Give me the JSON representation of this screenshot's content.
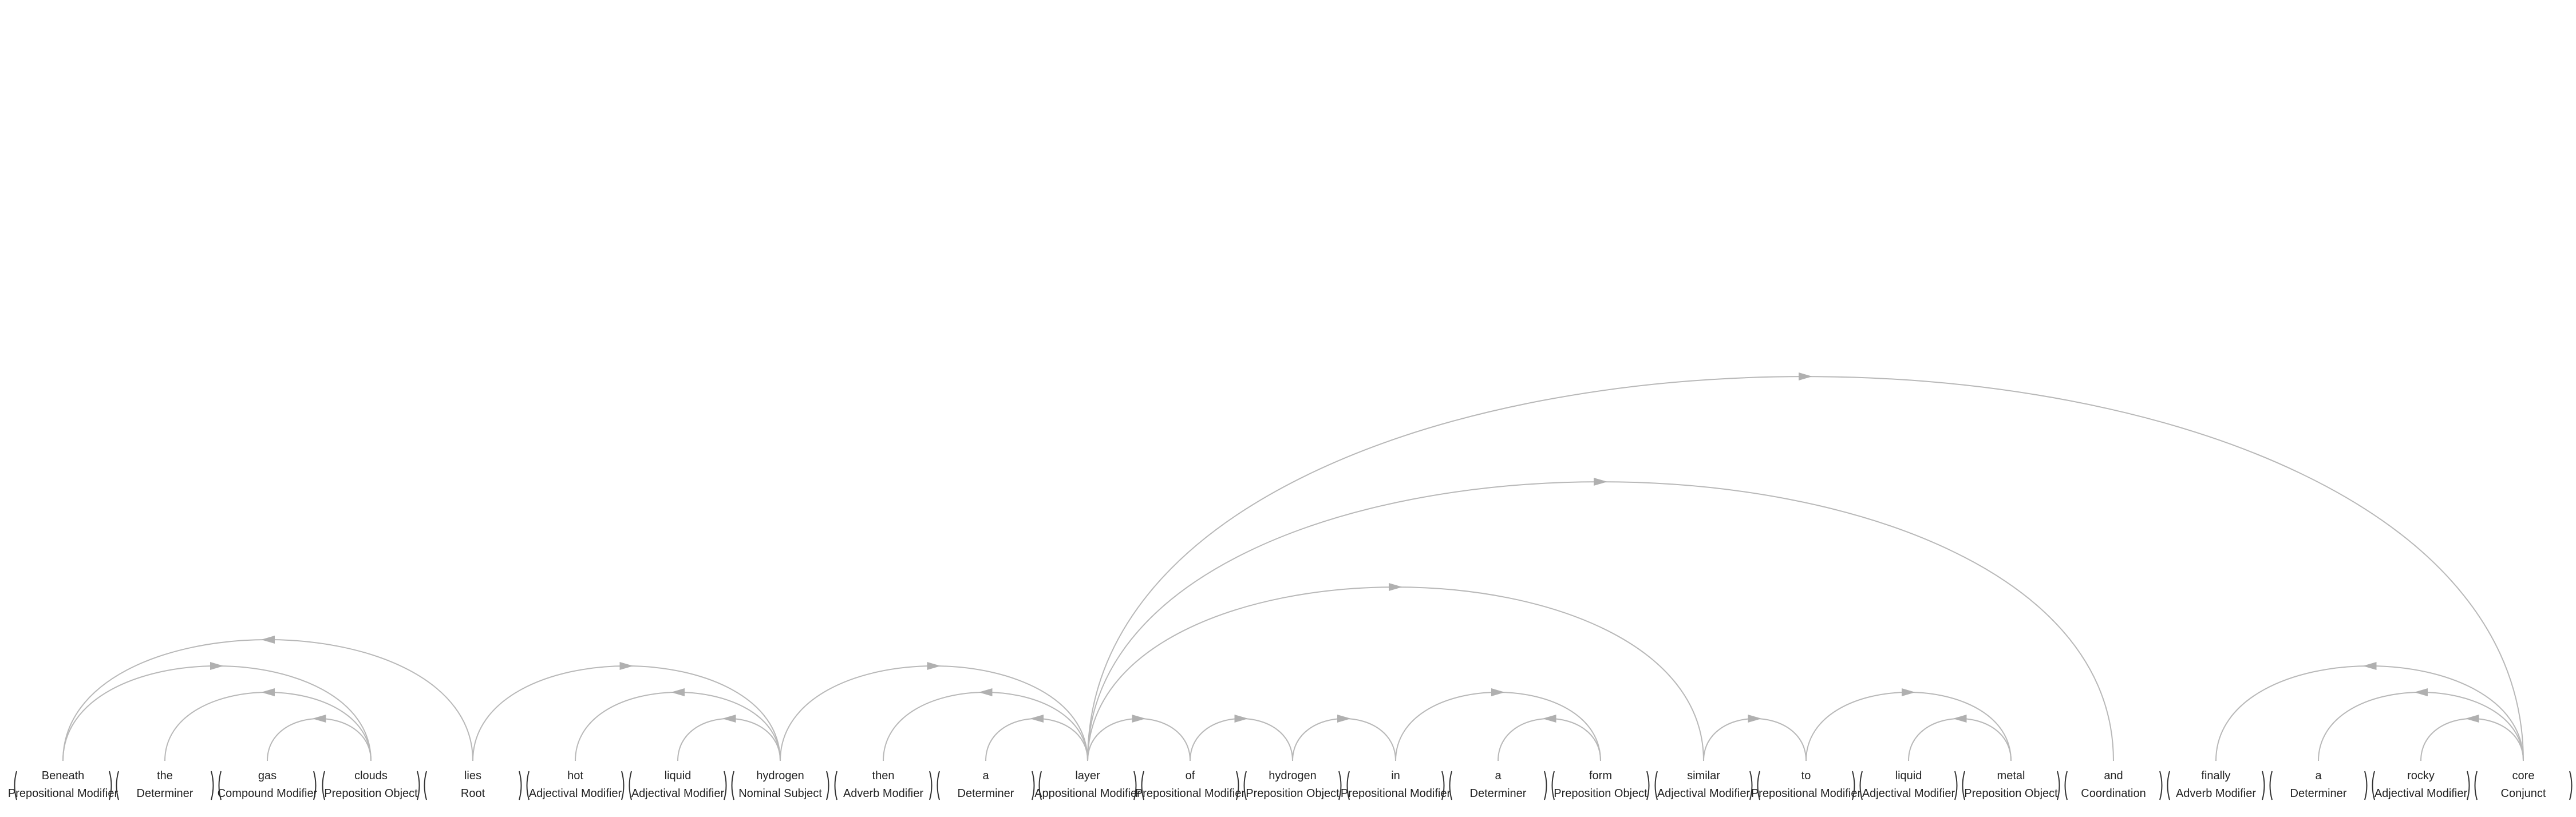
{
  "tokens": [
    {
      "word": "Beneath",
      "label": "Prepositional Modifier"
    },
    {
      "word": "the",
      "label": "Determiner"
    },
    {
      "word": "gas",
      "label": "Compound Modifier"
    },
    {
      "word": "clouds",
      "label": "Preposition Object"
    },
    {
      "word": "lies",
      "label": "Root"
    },
    {
      "word": "hot",
      "label": "Adjectival Modifier"
    },
    {
      "word": "liquid",
      "label": "Adjectival Modifier"
    },
    {
      "word": "hydrogen",
      "label": "Nominal Subject"
    },
    {
      "word": "then",
      "label": "Adverb Modifier"
    },
    {
      "word": "a",
      "label": "Determiner"
    },
    {
      "word": "layer",
      "label": "Appositional Modifier"
    },
    {
      "word": "of",
      "label": "Prepositional Modifier"
    },
    {
      "word": "hydrogen",
      "label": "Preposition Object"
    },
    {
      "word": "in",
      "label": "Prepositional Modifier"
    },
    {
      "word": "a",
      "label": "Determiner"
    },
    {
      "word": "form",
      "label": "Preposition Object"
    },
    {
      "word": "similar",
      "label": "Adjectival Modifier"
    },
    {
      "word": "to",
      "label": "Prepositional Modifier"
    },
    {
      "word": "liquid",
      "label": "Adjectival Modifier"
    },
    {
      "word": "metal",
      "label": "Preposition Object"
    },
    {
      "word": "and",
      "label": "Coordination"
    },
    {
      "word": "finally",
      "label": "Adverb Modifier"
    },
    {
      "word": "a",
      "label": "Determiner"
    },
    {
      "word": "rocky",
      "label": "Adjectival Modifier"
    },
    {
      "word": "core",
      "label": "Conjunct"
    }
  ],
  "arcs": [
    [
      4,
      0
    ],
    [
      3,
      1
    ],
    [
      3,
      2
    ],
    [
      0,
      3
    ],
    [
      7,
      5
    ],
    [
      7,
      6
    ],
    [
      4,
      7
    ],
    [
      10,
      8
    ],
    [
      10,
      9
    ],
    [
      7,
      10
    ],
    [
      10,
      11
    ],
    [
      11,
      12
    ],
    [
      12,
      13
    ],
    [
      15,
      14
    ],
    [
      13,
      15
    ],
    [
      10,
      16
    ],
    [
      16,
      17
    ],
    [
      19,
      18
    ],
    [
      17,
      19
    ],
    [
      10,
      20
    ],
    [
      24,
      21
    ],
    [
      24,
      22
    ],
    [
      24,
      23
    ],
    [
      10,
      24
    ]
  ]
}
